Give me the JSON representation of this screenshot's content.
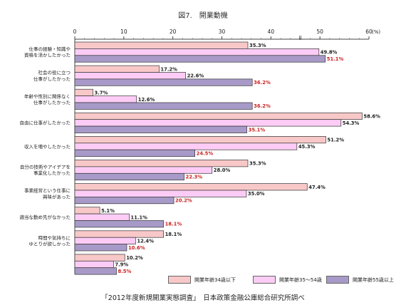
{
  "chart_data": {
    "type": "bar",
    "orientation": "horizontal",
    "title": "図7.　開業動機",
    "unit_label": "(%)",
    "xlim": [
      0,
      60
    ],
    "ticks": [
      "0",
      "10",
      "20",
      "30",
      "40",
      "50",
      "60"
    ],
    "categories": [
      "仕事の経験・知識や\n資格を活かしたかった",
      "社会の役に立つ\n仕事がしたかった",
      "年齢や性別に関係なく\n仕事がしたかった",
      "自由に仕事がしたかった",
      "収入を増やしたかった",
      "自分の技術やアイデアを\n事業化したかった",
      "事業経営という仕事に\n興味があった",
      "適当な勤め先がなかった",
      "時間や気持ちに\nゆとりが欲しかった",
      ""
    ],
    "series": [
      {
        "name": "開業年齢34歳以下",
        "color": "#f8c8c8",
        "values": [
          35.3,
          17.2,
          3.7,
          58.6,
          51.2,
          35.3,
          47.4,
          5.1,
          18.1,
          10.2
        ],
        "labels": [
          "35.3%",
          "17.2%",
          "3.7%",
          "58.6%",
          "51.2%",
          "35.3%",
          "47.4%",
          "5.1%",
          "18.1%",
          "10.2%"
        ]
      },
      {
        "name": "開業年齢35～54歳",
        "color": "#fcccf6",
        "values": [
          49.8,
          22.6,
          12.6,
          54.3,
          45.3,
          28.0,
          35.0,
          11.1,
          12.4,
          7.9
        ],
        "labels": [
          "49.8%",
          "22.6%",
          "12.6%",
          "54.3%",
          "45.3%",
          "28.0%",
          "35.0%",
          "11.1%",
          "12.4%",
          "7.9%"
        ]
      },
      {
        "name": "開業年齢55歳以上",
        "color": "#a89ac8",
        "values": [
          51.1,
          36.2,
          36.2,
          35.1,
          24.5,
          22.3,
          20.2,
          18.1,
          10.6,
          8.5
        ],
        "labels": [
          "51.1%",
          "36.2%",
          "36.2%",
          "35.1%",
          "24.5%",
          "22.3%",
          "20.2%",
          "18.1%",
          "10.6%",
          "8.5%"
        ]
      }
    ],
    "highlight_color": "#cc2222",
    "legend_position": "bottom-right",
    "grid": false
  },
  "source_note": "「2012年度新規開業実態調査」　日本政策金融公庫総合研究所調べ"
}
